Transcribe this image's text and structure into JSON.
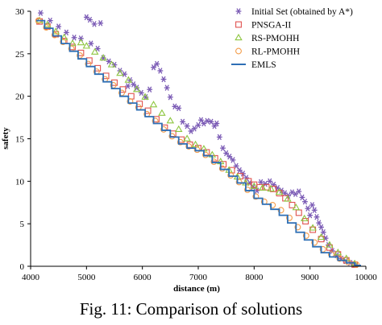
{
  "caption": "Fig. 11: Comparison of solutions",
  "chart_data": {
    "type": "scatter",
    "title": "",
    "xlabel": "distance (m)",
    "ylabel": "safety",
    "xlim": [
      4000,
      10000
    ],
    "ylim": [
      0,
      30
    ],
    "xticks": [
      "4000",
      "5000",
      "6000",
      "7000",
      "8000",
      "9000",
      "10000"
    ],
    "yticks": [
      "0",
      "5",
      "10",
      "15",
      "20",
      "25",
      "30"
    ],
    "grid": false,
    "legend_position": "top-right",
    "series": [
      {
        "name": "Initial Set (obtained by A*)",
        "marker": "asterisk",
        "color": "#7b5bb5",
        "points": [
          [
            4180,
            29.8
          ],
          [
            4350,
            28.9
          ],
          [
            4500,
            28.2
          ],
          [
            4640,
            27.5
          ],
          [
            4780,
            26.9
          ],
          [
            4900,
            26.8
          ],
          [
            5000,
            29.3
          ],
          [
            5060,
            29.0
          ],
          [
            5140,
            28.5
          ],
          [
            5250,
            28.6
          ],
          [
            5080,
            26.2
          ],
          [
            5200,
            25.6
          ],
          [
            5300,
            24.5
          ],
          [
            5400,
            24.1
          ],
          [
            5500,
            23.7
          ],
          [
            5600,
            23.0
          ],
          [
            5680,
            22.6
          ],
          [
            5740,
            21.2
          ],
          [
            5780,
            21.9
          ],
          [
            5840,
            21.4
          ],
          [
            5900,
            21.0
          ],
          [
            5980,
            20.4
          ],
          [
            6060,
            19.9
          ],
          [
            6130,
            20.8
          ],
          [
            6200,
            23.4
          ],
          [
            6260,
            23.8
          ],
          [
            6320,
            23.0
          ],
          [
            6380,
            22.0
          ],
          [
            6440,
            21.0
          ],
          [
            6500,
            19.9
          ],
          [
            6580,
            18.8
          ],
          [
            6650,
            18.6
          ],
          [
            6720,
            17.0
          ],
          [
            6800,
            16.5
          ],
          [
            6870,
            15.9
          ],
          [
            6930,
            16.2
          ],
          [
            7000,
            16.6
          ],
          [
            7050,
            17.2
          ],
          [
            7100,
            16.8
          ],
          [
            7160,
            17.1
          ],
          [
            7230,
            17.0
          ],
          [
            7290,
            16.5
          ],
          [
            7330,
            16.8
          ],
          [
            7380,
            15.2
          ],
          [
            7440,
            13.9
          ],
          [
            7500,
            13.3
          ],
          [
            7560,
            12.9
          ],
          [
            7620,
            12.5
          ],
          [
            7680,
            11.8
          ],
          [
            7740,
            11.3
          ],
          [
            7800,
            10.9
          ],
          [
            7860,
            10.4
          ],
          [
            7920,
            9.8
          ],
          [
            7980,
            9.3
          ],
          [
            8050,
            8.9
          ],
          [
            8120,
            9.9
          ],
          [
            8200,
            9.7
          ],
          [
            8280,
            10.0
          ],
          [
            8350,
            9.6
          ],
          [
            8420,
            9.2
          ],
          [
            8490,
            8.9
          ],
          [
            8550,
            8.6
          ],
          [
            8610,
            8.3
          ],
          [
            8680,
            8.7
          ],
          [
            8740,
            8.5
          ],
          [
            8800,
            8.8
          ],
          [
            8860,
            8.1
          ],
          [
            8910,
            7.6
          ],
          [
            8960,
            6.8
          ],
          [
            9000,
            6.0
          ],
          [
            9040,
            7.2
          ],
          [
            9080,
            6.6
          ],
          [
            9120,
            5.8
          ],
          [
            9160,
            5.1
          ],
          [
            9200,
            4.6
          ],
          [
            9240,
            4.0
          ],
          [
            9280,
            3.3
          ],
          [
            9330,
            2.5
          ],
          [
            9400,
            1.8
          ],
          [
            9480,
            1.3
          ],
          [
            9560,
            0.9
          ],
          [
            9640,
            0.6
          ],
          [
            9720,
            0.4
          ],
          [
            9800,
            0.2
          ]
        ]
      },
      {
        "name": "PNSGA-II",
        "marker": "square",
        "color": "#e0524f",
        "points": [
          [
            4160,
            28.8
          ],
          [
            4300,
            28.2
          ],
          [
            4450,
            27.3
          ],
          [
            4600,
            26.5
          ],
          [
            4750,
            25.8
          ],
          [
            4900,
            25.1
          ],
          [
            5050,
            24.2
          ],
          [
            5200,
            23.3
          ],
          [
            5350,
            22.4
          ],
          [
            5500,
            21.6
          ],
          [
            5650,
            20.8
          ],
          [
            5800,
            20.0
          ],
          [
            5950,
            19.1
          ],
          [
            6100,
            18.3
          ],
          [
            6250,
            17.3
          ],
          [
            6400,
            16.3
          ],
          [
            6550,
            15.6
          ],
          [
            6700,
            14.9
          ],
          [
            6850,
            14.3
          ],
          [
            7000,
            13.9
          ],
          [
            7150,
            13.4
          ],
          [
            7300,
            12.7
          ],
          [
            7450,
            12.0
          ],
          [
            7600,
            11.3
          ],
          [
            7750,
            10.6
          ],
          [
            7900,
            10.0
          ],
          [
            8000,
            9.6
          ],
          [
            8100,
            9.3
          ],
          [
            8220,
            9.3
          ],
          [
            8340,
            9.1
          ],
          [
            8450,
            8.6
          ],
          [
            8560,
            8.0
          ],
          [
            8680,
            7.2
          ],
          [
            8800,
            6.3
          ],
          [
            8920,
            5.3
          ],
          [
            9050,
            4.3
          ],
          [
            9200,
            3.2
          ],
          [
            9350,
            2.2
          ],
          [
            9500,
            1.4
          ],
          [
            9650,
            0.7
          ],
          [
            9800,
            0.2
          ]
        ]
      },
      {
        "name": "RS-PMOHH",
        "marker": "triangle",
        "color": "#8dc63f",
        "points": [
          [
            4160,
            28.9
          ],
          [
            4300,
            28.4
          ],
          [
            4450,
            27.6
          ],
          [
            4600,
            26.9
          ],
          [
            4750,
            26.2
          ],
          [
            4900,
            26.3
          ],
          [
            5000,
            25.9
          ],
          [
            5150,
            25.2
          ],
          [
            5300,
            24.5
          ],
          [
            5450,
            23.7
          ],
          [
            5600,
            22.7
          ],
          [
            5750,
            21.9
          ],
          [
            5900,
            20.8
          ],
          [
            6050,
            19.9
          ],
          [
            6200,
            19.0
          ],
          [
            6350,
            18.0
          ],
          [
            6500,
            17.1
          ],
          [
            6650,
            16.1
          ],
          [
            6800,
            15.0
          ],
          [
            6950,
            14.3
          ],
          [
            7100,
            13.8
          ],
          [
            7250,
            13.1
          ],
          [
            7400,
            12.3
          ],
          [
            7550,
            11.3
          ],
          [
            7700,
            10.5
          ],
          [
            7850,
            9.8
          ],
          [
            8000,
            9.4
          ],
          [
            8150,
            9.2
          ],
          [
            8300,
            9.1
          ],
          [
            8450,
            8.7
          ],
          [
            8600,
            7.9
          ],
          [
            8750,
            6.9
          ],
          [
            8900,
            5.6
          ],
          [
            9050,
            4.5
          ],
          [
            9200,
            3.4
          ],
          [
            9350,
            2.5
          ],
          [
            9500,
            1.6
          ],
          [
            9650,
            0.9
          ],
          [
            9800,
            0.3
          ]
        ]
      },
      {
        "name": "RL-PMOHH",
        "marker": "circle",
        "color": "#f39c4a",
        "points": [
          [
            4140,
            28.9
          ],
          [
            4280,
            28.1
          ],
          [
            4430,
            27.2
          ],
          [
            4580,
            26.4
          ],
          [
            4730,
            25.6
          ],
          [
            4880,
            24.8
          ],
          [
            5030,
            23.8
          ],
          [
            5180,
            22.9
          ],
          [
            5330,
            22.0
          ],
          [
            5480,
            21.3
          ],
          [
            5630,
            20.4
          ],
          [
            5780,
            19.4
          ],
          [
            5930,
            18.7
          ],
          [
            6080,
            17.9
          ],
          [
            6230,
            17.1
          ],
          [
            6380,
            16.1
          ],
          [
            6530,
            15.3
          ],
          [
            6680,
            14.6
          ],
          [
            6830,
            14.1
          ],
          [
            6980,
            13.7
          ],
          [
            7130,
            13.1
          ],
          [
            7280,
            12.3
          ],
          [
            7430,
            11.5
          ],
          [
            7580,
            10.7
          ],
          [
            7730,
            9.9
          ],
          [
            7880,
            9.0
          ],
          [
            8030,
            8.2
          ],
          [
            8180,
            7.6
          ],
          [
            8330,
            7.2
          ],
          [
            8480,
            6.6
          ],
          [
            8630,
            5.7
          ],
          [
            8780,
            4.6
          ],
          [
            8930,
            3.6
          ],
          [
            9080,
            2.8
          ],
          [
            9230,
            2.0
          ],
          [
            9380,
            1.4
          ],
          [
            9530,
            0.9
          ],
          [
            9680,
            0.5
          ],
          [
            9830,
            0.2
          ]
        ]
      },
      {
        "name": "EMLS",
        "marker": "line",
        "color": "#2e6fb5",
        "points": [
          [
            4100,
            28.9
          ],
          [
            4250,
            28.0
          ],
          [
            4400,
            27.1
          ],
          [
            4550,
            26.2
          ],
          [
            4700,
            25.3
          ],
          [
            4850,
            24.4
          ],
          [
            5000,
            23.5
          ],
          [
            5150,
            22.6
          ],
          [
            5300,
            21.7
          ],
          [
            5450,
            20.9
          ],
          [
            5600,
            20.0
          ],
          [
            5750,
            19.2
          ],
          [
            5900,
            18.4
          ],
          [
            6050,
            17.6
          ],
          [
            6200,
            16.8
          ],
          [
            6350,
            16.0
          ],
          [
            6500,
            15.2
          ],
          [
            6650,
            14.4
          ],
          [
            6800,
            13.9
          ],
          [
            6950,
            13.6
          ],
          [
            7100,
            13.0
          ],
          [
            7250,
            12.2
          ],
          [
            7400,
            11.4
          ],
          [
            7550,
            10.6
          ],
          [
            7700,
            9.8
          ],
          [
            7850,
            8.9
          ],
          [
            8000,
            8.0
          ],
          [
            8150,
            7.3
          ],
          [
            8300,
            6.7
          ],
          [
            8450,
            6.0
          ],
          [
            8600,
            5.1
          ],
          [
            8750,
            4.0
          ],
          [
            8900,
            3.1
          ],
          [
            9050,
            2.3
          ],
          [
            9200,
            1.6
          ],
          [
            9350,
            1.1
          ],
          [
            9500,
            0.7
          ],
          [
            9650,
            0.4
          ],
          [
            9800,
            0.1
          ],
          [
            9900,
            0.0
          ]
        ]
      }
    ]
  }
}
